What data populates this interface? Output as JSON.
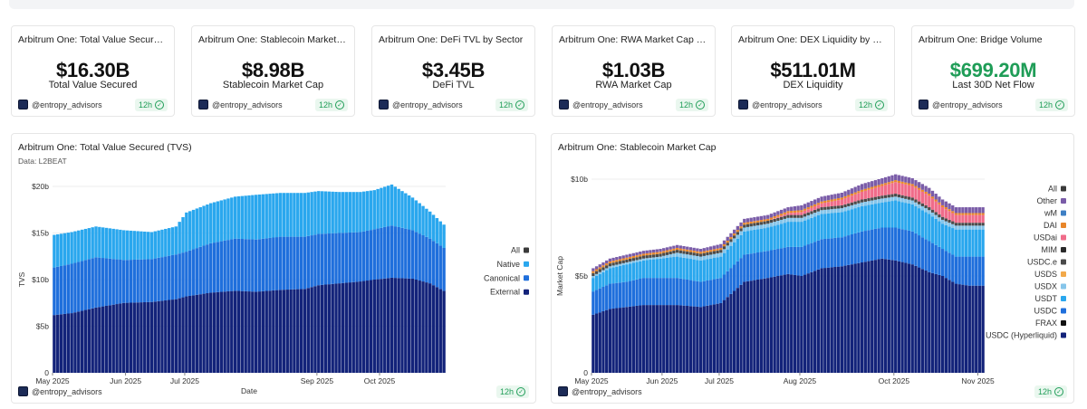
{
  "kpis": [
    {
      "title": "Arbitrum One: Total Value Secured (TVS)",
      "value": "$16.30B",
      "label": "Total Value Secured",
      "author": "@entropy_advisors",
      "freshness": "12h",
      "color": "#111111"
    },
    {
      "title": "Arbitrum One: Stablecoin Market Cap",
      "value": "$8.98B",
      "label": "Stablecoin Market Cap",
      "author": "@entropy_advisors",
      "freshness": "12h",
      "color": "#111111"
    },
    {
      "title": "Arbitrum One: DeFi TVL by Sector",
      "value": "$3.45B",
      "label": "DeFi TVL",
      "author": "@entropy_advisors",
      "freshness": "12h",
      "color": "#111111"
    },
    {
      "title": "Arbitrum One: RWA Market Cap by Issuer",
      "value": "$1.03B",
      "label": "RWA Market Cap",
      "author": "@entropy_advisors",
      "freshness": "12h",
      "color": "#111111"
    },
    {
      "title": "Arbitrum One: DEX Liquidity by Protocol",
      "value": "$511.01M",
      "label": "DEX Liquidity",
      "author": "@entropy_advisors",
      "freshness": "12h",
      "color": "#111111"
    },
    {
      "title": "Arbitrum One: Bridge Volume",
      "value": "$699.20M",
      "label": "Last 30D Net Flow",
      "author": "@entropy_advisors",
      "freshness": "12h",
      "color": "#1f9d57"
    }
  ],
  "chart_data": [
    {
      "type": "bar",
      "stacked": true,
      "title": "Arbitrum One: Total Value Secured (TVS)",
      "subtitle": "Data: L2BEAT",
      "xlabel": "Date",
      "ylabel": "TVS",
      "ylim": [
        0,
        20
      ],
      "yticks": [
        0,
        5,
        10,
        15,
        20
      ],
      "ytick_labels": [
        "0",
        "$5b",
        "$10b",
        "$15b",
        "$20b"
      ],
      "xticks": [
        {
          "label": "May 2025",
          "index": 0
        },
        {
          "label": "Jun 2025",
          "index": 21
        },
        {
          "label": "Jul 2025",
          "index": 38
        },
        {
          "label": "Sep 2025",
          "index": 76
        },
        {
          "label": "Oct 2025",
          "index": 94
        }
      ],
      "legend": {
        "position": "right",
        "items": [
          {
            "name": "All",
            "color": "#3a3a3a"
          },
          {
            "name": "Native",
            "color": "#2aa7ee"
          },
          {
            "name": "Canonical",
            "color": "#1f6fdc"
          },
          {
            "name": "External",
            "color": "#13237a"
          }
        ]
      },
      "keyframes": {
        "index": [
          0,
          5,
          12,
          20,
          28,
          35,
          38,
          45,
          52,
          58,
          65,
          72,
          76,
          82,
          88,
          92,
          97,
          103,
          108,
          112
        ],
        "External": [
          6.2,
          6.4,
          7.0,
          7.5,
          7.6,
          7.9,
          8.2,
          8.6,
          8.8,
          8.7,
          8.9,
          9.0,
          9.4,
          9.6,
          9.8,
          10.0,
          10.2,
          10.1,
          9.6,
          8.8
        ],
        "Canonical": [
          5.1,
          5.3,
          5.4,
          4.6,
          4.6,
          4.8,
          4.8,
          5.3,
          5.6,
          5.6,
          5.7,
          5.6,
          5.5,
          5.4,
          5.3,
          5.4,
          5.6,
          5.2,
          4.8,
          4.6
        ],
        "Native": [
          3.5,
          3.4,
          3.3,
          3.2,
          2.9,
          3.0,
          4.2,
          4.3,
          4.5,
          4.8,
          4.7,
          4.7,
          4.6,
          4.4,
          4.3,
          4.2,
          4.4,
          3.5,
          2.9,
          2.5
        ]
      }
    },
    {
      "type": "bar",
      "stacked": true,
      "title": "Arbitrum One: Stablecoin Market Cap",
      "xlabel": "",
      "ylabel": "Market Cap",
      "ylim": [
        0,
        10
      ],
      "yticks": [
        0,
        5,
        10
      ],
      "ytick_labels": [
        "0",
        "$5b",
        "$10b"
      ],
      "xticks": [
        {
          "label": "May 2025",
          "index": 0
        },
        {
          "label": "Jun 2025",
          "index": 21
        },
        {
          "label": "Jul 2025",
          "index": 38
        },
        {
          "label": "Aug 2025",
          "index": 62
        },
        {
          "label": "Oct 2025",
          "index": 90
        },
        {
          "label": "Nov 2025",
          "index": 115
        }
      ],
      "legend": {
        "position": "right",
        "items": [
          {
            "name": "All",
            "color": "#3a3a3a"
          },
          {
            "name": "Other",
            "color": "#7a5ca8"
          },
          {
            "name": "wM",
            "color": "#3d7fc4"
          },
          {
            "name": "DAI",
            "color": "#e8862a"
          },
          {
            "name": "USDai",
            "color": "#f06c8a"
          },
          {
            "name": "MIM",
            "color": "#2a2a2a"
          },
          {
            "name": "USDC.e",
            "color": "#4a4a4a"
          },
          {
            "name": "USDS",
            "color": "#f2a94a"
          },
          {
            "name": "USDX",
            "color": "#86c5ea"
          },
          {
            "name": "USDT",
            "color": "#2aa7ee"
          },
          {
            "name": "USDC",
            "color": "#1f6fdc"
          },
          {
            "name": "FRAX",
            "color": "#111111"
          },
          {
            "name": "USDC (Hyperliquid)",
            "color": "#13237a"
          }
        ]
      },
      "keyframes": {
        "index": [
          0,
          5,
          10,
          15,
          20,
          25,
          32,
          38,
          45,
          52,
          58,
          62,
          68,
          74,
          80,
          86,
          90,
          95,
          100,
          104,
          108,
          112,
          116
        ],
        "USDC (Hyperliquid)": [
          3.0,
          3.3,
          3.4,
          3.5,
          3.5,
          3.5,
          3.4,
          3.6,
          4.7,
          4.9,
          5.1,
          5.0,
          5.4,
          5.5,
          5.7,
          5.9,
          5.8,
          5.6,
          5.2,
          5.0,
          4.6,
          4.5,
          4.5
        ],
        "USDC": [
          1.2,
          1.3,
          1.3,
          1.4,
          1.4,
          1.4,
          1.3,
          1.3,
          1.4,
          1.4,
          1.4,
          1.5,
          1.5,
          1.5,
          1.6,
          1.6,
          1.7,
          1.7,
          1.6,
          1.4,
          1.4,
          1.5,
          1.5
        ],
        "USDT": [
          0.7,
          0.8,
          0.9,
          0.9,
          1.0,
          1.1,
          1.1,
          1.1,
          1.2,
          1.2,
          1.3,
          1.3,
          1.3,
          1.3,
          1.3,
          1.3,
          1.4,
          1.4,
          1.4,
          1.3,
          1.4,
          1.4,
          1.4
        ],
        "USDX": [
          0.1,
          0.1,
          0.1,
          0.1,
          0.1,
          0.2,
          0.2,
          0.2,
          0.2,
          0.2,
          0.2,
          0.2,
          0.2,
          0.2,
          0.2,
          0.2,
          0.2,
          0.2,
          0.2,
          0.2,
          0.2,
          0.2,
          0.2
        ],
        "USDC.e": [
          0.15,
          0.15,
          0.15,
          0.15,
          0.15,
          0.15,
          0.15,
          0.15,
          0.15,
          0.15,
          0.15,
          0.15,
          0.15,
          0.15,
          0.15,
          0.15,
          0.15,
          0.15,
          0.15,
          0.15,
          0.15,
          0.15,
          0.15
        ],
        "USDai": [
          0.0,
          0.0,
          0.0,
          0.0,
          0.0,
          0.0,
          0.0,
          0.0,
          0.0,
          0.0,
          0.1,
          0.15,
          0.2,
          0.3,
          0.4,
          0.5,
          0.6,
          0.6,
          0.6,
          0.5,
          0.4,
          0.4,
          0.4
        ],
        "DAI": [
          0.1,
          0.1,
          0.1,
          0.1,
          0.1,
          0.1,
          0.1,
          0.1,
          0.1,
          0.1,
          0.1,
          0.1,
          0.1,
          0.1,
          0.1,
          0.1,
          0.1,
          0.1,
          0.1,
          0.1,
          0.1,
          0.1,
          0.1
        ],
        "Other": [
          0.15,
          0.15,
          0.15,
          0.15,
          0.15,
          0.15,
          0.15,
          0.2,
          0.2,
          0.2,
          0.2,
          0.25,
          0.25,
          0.25,
          0.3,
          0.3,
          0.3,
          0.3,
          0.3,
          0.3,
          0.3,
          0.3,
          0.3
        ]
      }
    }
  ],
  "charts_meta": [
    {
      "author": "@entropy_advisors",
      "freshness": "12h"
    },
    {
      "author": "@entropy_advisors",
      "freshness": "12h"
    }
  ]
}
